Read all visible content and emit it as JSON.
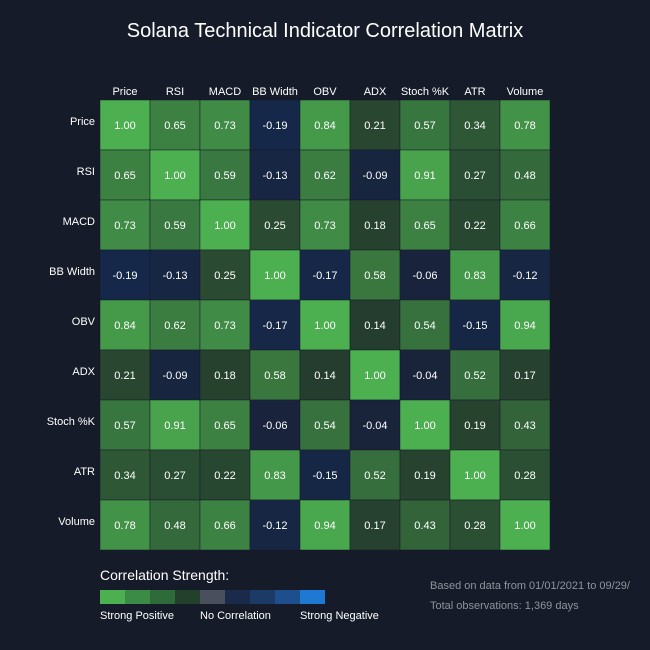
{
  "chart_data": {
    "type": "heatmap",
    "title": "Solana Technical Indicator Correlation Matrix",
    "columns": [
      "Price",
      "RSI",
      "MACD",
      "BB Width",
      "OBV",
      "ADX",
      "Stoch %K",
      "ATR",
      "Volume"
    ],
    "rows": [
      "Price",
      "RSI",
      "MACD",
      "BB Width",
      "OBV",
      "ADX",
      "Stoch %K",
      "ATR",
      "Volume"
    ],
    "values": [
      [
        1.0,
        0.65,
        0.73,
        -0.19,
        0.84,
        0.21,
        0.57,
        0.34,
        0.78
      ],
      [
        0.65,
        1.0,
        0.59,
        -0.13,
        0.62,
        -0.09,
        0.91,
        0.27,
        0.48
      ],
      [
        0.73,
        0.59,
        1.0,
        0.25,
        0.73,
        0.18,
        0.65,
        0.22,
        0.66
      ],
      [
        -0.19,
        -0.13,
        0.25,
        1.0,
        -0.17,
        0.58,
        -0.06,
        0.83,
        -0.12
      ],
      [
        0.84,
        0.62,
        0.73,
        -0.17,
        1.0,
        0.14,
        0.54,
        -0.15,
        0.94
      ],
      [
        0.21,
        -0.09,
        0.18,
        0.58,
        0.14,
        1.0,
        -0.04,
        0.52,
        0.17
      ],
      [
        0.57,
        0.91,
        0.65,
        -0.06,
        0.54,
        -0.04,
        1.0,
        0.19,
        0.43
      ],
      [
        0.34,
        0.27,
        0.22,
        0.83,
        -0.15,
        0.52,
        0.19,
        1.0,
        0.28
      ],
      [
        0.78,
        0.48,
        0.66,
        -0.12,
        0.94,
        0.17,
        0.43,
        0.28,
        1.0
      ]
    ],
    "value_format": "2 decimals"
  },
  "legend": {
    "title": "Correlation Strength:",
    "swatches": [
      "#4caf50",
      "#3b8a45",
      "#2d6b38",
      "#23402d",
      "#4a4f5e",
      "#1a2a4a",
      "#1c3a66",
      "#1d4f8c",
      "#1f78d1"
    ],
    "labels": [
      "Strong Positive",
      "No Correlation",
      "Strong Negative"
    ]
  },
  "footnote": {
    "line1": "Based on data from 01/01/2021 to 09/29/",
    "line2": "Total observations: 1,369 days"
  },
  "colors": {
    "background": "#151b28",
    "strong_positive": "#4caf50",
    "text": "#ffffff",
    "muted_text": "#8f949c"
  }
}
